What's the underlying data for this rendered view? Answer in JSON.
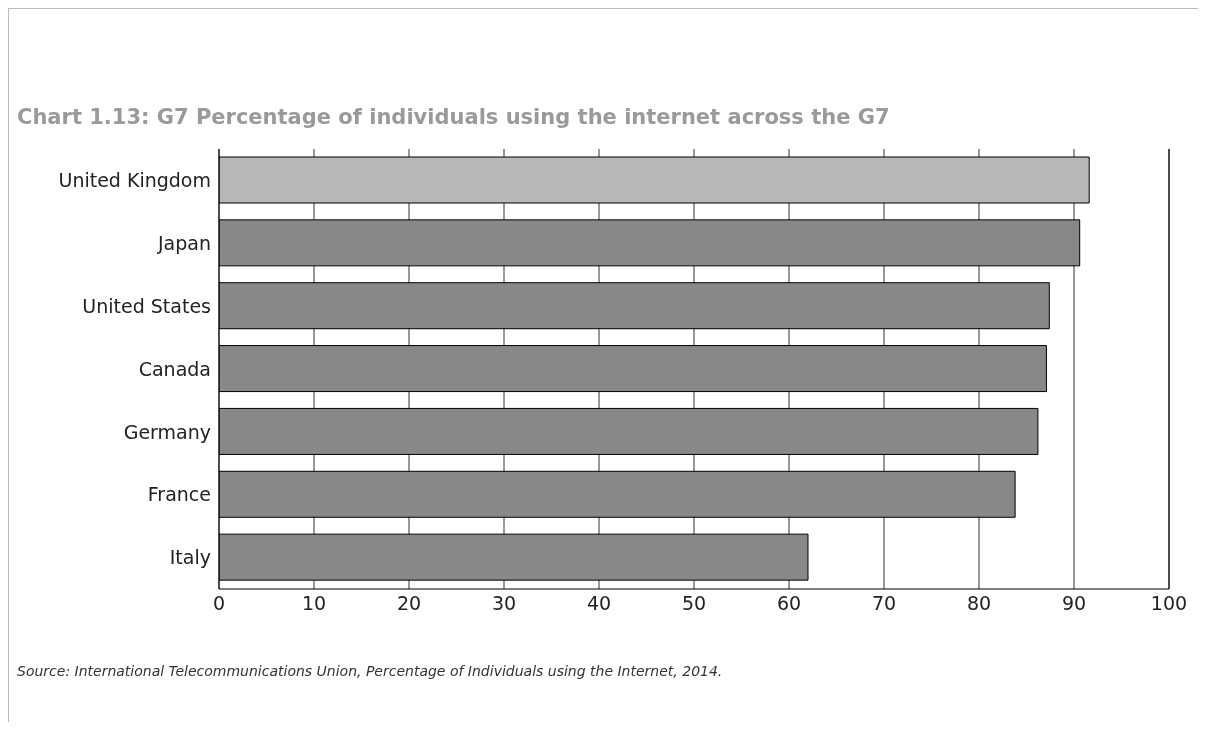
{
  "chart_data": {
    "type": "bar",
    "orientation": "horizontal",
    "title": "Chart 1.13: G7 Percentage of individuals using the internet across the G7",
    "categories": [
      "United Kingdom",
      "Japan",
      "United States",
      "Canada",
      "Germany",
      "France",
      "Italy"
    ],
    "values": [
      91.6,
      90.6,
      87.4,
      87.1,
      86.2,
      83.8,
      62.0
    ],
    "colors": [
      "#b7b7b7",
      "#888888",
      "#888888",
      "#888888",
      "#888888",
      "#888888",
      "#888888"
    ],
    "xlim": [
      0,
      100
    ],
    "xticks": [
      0,
      10,
      20,
      30,
      40,
      50,
      60,
      70,
      80,
      90,
      100
    ],
    "grid": "x",
    "annotations": [
      "Source: International Telecommunications Union, Percentage of Individuals using the Internet, 2014."
    ]
  }
}
